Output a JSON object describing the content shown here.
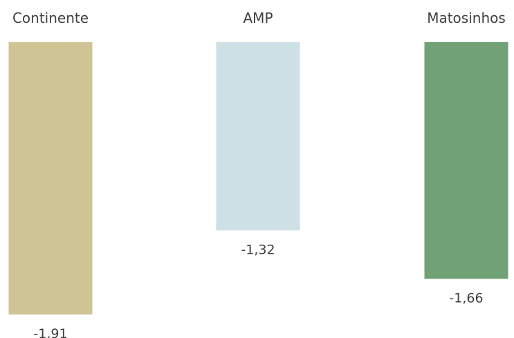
{
  "chart_data": {
    "type": "bar",
    "orientation": "vertical",
    "title": "",
    "xlabel": "",
    "ylabel": "",
    "categories": [
      "Continente",
      "AMP",
      "Matosinhos"
    ],
    "values": [
      -1.91,
      -1.32,
      -1.66
    ],
    "value_labels": [
      "-1,91",
      "-1,32",
      "-1,66"
    ],
    "category_label_position": "top",
    "colors": [
      "#cfc594",
      "#cde0e6",
      "#70a275"
    ],
    "ylim": [
      -1.91,
      0
    ],
    "grid": false,
    "legend": "none"
  }
}
